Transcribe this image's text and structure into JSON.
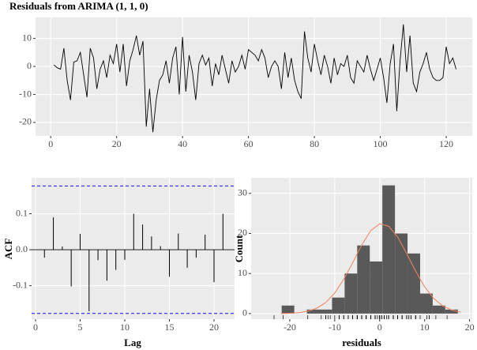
{
  "chart_data": [
    {
      "type": "line",
      "title": "Residuals from ARIMA (1, 1, 0)",
      "color": "#000000",
      "x": [
        1,
        2,
        3,
        4,
        5,
        6,
        7,
        8,
        9,
        10,
        11,
        12,
        13,
        14,
        15,
        16,
        17,
        18,
        19,
        20,
        21,
        22,
        23,
        24,
        25,
        26,
        27,
        28,
        29,
        30,
        31,
        32,
        33,
        34,
        35,
        36,
        37,
        38,
        39,
        40,
        41,
        42,
        43,
        44,
        45,
        46,
        47,
        48,
        49,
        50,
        51,
        52,
        53,
        54,
        55,
        56,
        57,
        58,
        59,
        60,
        61,
        62,
        63,
        64,
        65,
        66,
        67,
        68,
        69,
        70,
        71,
        72,
        73,
        74,
        75,
        76,
        77,
        78,
        79,
        80,
        81,
        82,
        83,
        84,
        85,
        86,
        87,
        88,
        89,
        90,
        91,
        92,
        93,
        94,
        95,
        96,
        97,
        98,
        99,
        100,
        101,
        102,
        103,
        104,
        105,
        106,
        107,
        108,
        109,
        110,
        111,
        112,
        113,
        114,
        115,
        116,
        117,
        118,
        119,
        120,
        121,
        122,
        123
      ],
      "values": [
        0.5,
        -0.5,
        -1,
        6.5,
        -5,
        -12,
        1.5,
        2,
        5,
        -3,
        -11,
        6.5,
        3,
        -8,
        -1,
        2,
        -4,
        4,
        1,
        8,
        -2,
        8,
        -7,
        2,
        6,
        11,
        4,
        9,
        -21.5,
        -8,
        -23.5,
        -12,
        -5,
        -3,
        2,
        -6,
        3,
        7,
        -10,
        10.5,
        -9,
        4,
        -2,
        -12,
        1,
        4,
        0.5,
        3,
        -7,
        1,
        -3,
        4,
        -1,
        -6,
        2,
        -2,
        0,
        4,
        -1,
        6,
        5,
        4,
        2,
        6,
        3,
        -4,
        0,
        2,
        0,
        -8,
        5,
        -4,
        3,
        -5,
        -9,
        -11.5,
        12.5,
        3,
        -2,
        8,
        2,
        -3,
        4,
        0,
        -6,
        3,
        -3,
        1,
        0,
        4,
        -4,
        -6,
        2,
        0,
        -2,
        4,
        -1,
        -5,
        -1,
        3,
        -4,
        -13,
        1,
        8,
        -16,
        2,
        15,
        -2,
        11,
        -6,
        -9,
        -2,
        1,
        5,
        -1,
        -4,
        -5,
        -5,
        -4,
        7,
        1,
        3,
        -1
      ],
      "xlim": [
        -4.6,
        127.9
      ],
      "ylim": [
        -24.8,
        17.5
      ],
      "xticks": [
        0,
        20,
        40,
        60,
        80,
        100,
        120
      ],
      "yticks": [
        -20,
        -10,
        0,
        10
      ],
      "grid": true
    },
    {
      "type": "acf",
      "x_label": "Lag",
      "y_label": "ACF",
      "color": "#000000",
      "bound_color": "#2b2bff",
      "x": [
        1,
        2,
        3,
        4,
        5,
        6,
        7,
        8,
        9,
        10,
        11,
        12,
        13,
        14,
        15,
        16,
        17,
        18,
        19,
        20,
        21
      ],
      "values": [
        -0.022,
        0.09,
        0.009,
        -0.102,
        0.044,
        -0.171,
        -0.029,
        -0.086,
        -0.056,
        -0.028,
        0.1,
        0.07,
        0.037,
        0.01,
        -0.075,
        0.045,
        -0.05,
        -0.022,
        0.042,
        -0.09,
        0.1
      ],
      "confidence_bounds": [
        0.177,
        -0.177
      ],
      "xlim": [
        -0.44,
        22.3
      ],
      "ylim": [
        -0.193,
        0.2
      ],
      "xticks": [
        0,
        5,
        10,
        15,
        20
      ],
      "yticks": [
        -0.1,
        {
          "value": 0,
          "label": "0.0"
        },
        0.1
      ],
      "grid": true
    },
    {
      "type": "histogram",
      "x_label": "residuals",
      "y_label": "Count",
      "color": "#595959",
      "curve_color": "#f4835f",
      "bins": [
        -21.8,
        -19,
        -16.2,
        -13.4,
        -10.6,
        -7.8,
        -5,
        -2.2,
        0.6,
        3.4,
        6.2,
        9,
        11.8,
        14.6,
        17.4
      ],
      "counts": [
        2,
        0,
        1,
        1,
        4,
        10,
        17,
        13,
        32,
        20,
        15,
        5,
        2,
        1
      ],
      "curve": {
        "x": [
          -22,
          -20,
          -18,
          -16,
          -14,
          -12,
          -10,
          -8,
          -6,
          -4,
          -2,
          0,
          2,
          4,
          6,
          8,
          10,
          12,
          14,
          16,
          18
        ],
        "y": [
          0.025,
          0.08,
          0.23,
          0.59,
          1.34,
          2.75,
          5.12,
          8.53,
          12.7,
          17.1,
          20.7,
          22.4,
          21.8,
          19.1,
          15,
          10.6,
          6.7,
          3.8,
          1.94,
          0.9,
          0.37
        ]
      },
      "xlim": [
        -28.6,
        20.6
      ],
      "ylim": [
        -1.4,
        33.9
      ],
      "xticks": [
        -20,
        -10,
        0,
        10,
        20
      ],
      "yticks": [
        0,
        10,
        20,
        30
      ],
      "grid": true
    }
  ]
}
